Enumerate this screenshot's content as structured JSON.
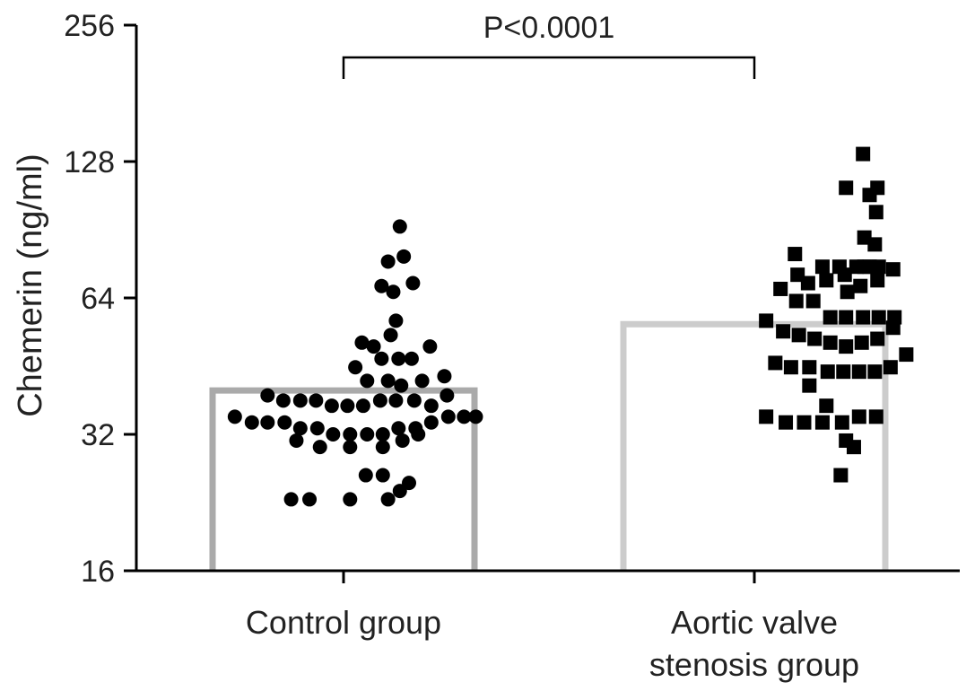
{
  "chart_data": {
    "type": "scatter",
    "subtype": "dot-plot-with-bars",
    "ylabel": "Chemerin (ng/ml)",
    "yscale": "log2",
    "ylim": [
      16,
      256
    ],
    "yticks": [
      "16",
      "32",
      "64",
      "128",
      "256"
    ],
    "categories": [
      {
        "label_lines": [
          "Control group"
        ]
      },
      {
        "label_lines": [
          "Aortic valve",
          "stenosis group"
        ]
      }
    ],
    "bar_colors": [
      "#aaaaaa",
      "#cccccc"
    ],
    "point_color": "#000000",
    "bar_values": [
      40,
      56
    ],
    "annotation": {
      "text": "P<0.0001",
      "between": [
        0,
        1
      ]
    },
    "series": [
      {
        "marker": "circle",
        "points": [
          [
            0.43,
            92
          ],
          [
            0.34,
            77
          ],
          [
            0.46,
            79
          ],
          [
            0.29,
            68
          ],
          [
            0.38,
            66
          ],
          [
            0.53,
            69
          ],
          [
            0.4,
            57
          ],
          [
            0.14,
            51
          ],
          [
            0.23,
            50
          ],
          [
            0.36,
            53
          ],
          [
            0.66,
            50
          ],
          [
            0.09,
            45
          ],
          [
            0.29,
            47
          ],
          [
            0.42,
            47
          ],
          [
            0.52,
            47
          ],
          [
            0.18,
            42
          ],
          [
            0.34,
            42
          ],
          [
            0.44,
            41
          ],
          [
            0.6,
            42
          ],
          [
            0.77,
            43
          ],
          [
            -0.58,
            39
          ],
          [
            -0.46,
            38
          ],
          [
            -0.33,
            38
          ],
          [
            -0.21,
            38
          ],
          [
            -0.09,
            37
          ],
          [
            0.03,
            37
          ],
          [
            0.15,
            37
          ],
          [
            0.28,
            38
          ],
          [
            0.4,
            38
          ],
          [
            0.54,
            38
          ],
          [
            0.67,
            37
          ],
          [
            0.79,
            39
          ],
          [
            -0.83,
            35
          ],
          [
            -0.7,
            34
          ],
          [
            -0.58,
            34
          ],
          [
            -0.45,
            34
          ],
          [
            -0.33,
            33
          ],
          [
            -0.2,
            33
          ],
          [
            -0.08,
            32
          ],
          [
            0.05,
            32
          ],
          [
            0.18,
            32
          ],
          [
            0.3,
            32
          ],
          [
            0.42,
            33
          ],
          [
            0.55,
            33
          ],
          [
            0.67,
            34
          ],
          [
            0.8,
            35
          ],
          [
            0.92,
            35
          ],
          [
            1.01,
            35
          ],
          [
            -0.36,
            31
          ],
          [
            -0.18,
            30
          ],
          [
            0.05,
            30
          ],
          [
            0.3,
            30
          ],
          [
            0.45,
            31
          ],
          [
            0.57,
            32
          ],
          [
            0.17,
            26
          ],
          [
            0.3,
            26
          ],
          [
            0.5,
            25
          ],
          [
            0.34,
            23
          ],
          [
            0.43,
            24
          ],
          [
            0.05,
            23
          ],
          [
            -0.26,
            23
          ],
          [
            -0.4,
            23
          ]
        ]
      },
      {
        "marker": "square",
        "points": [
          [
            0.83,
            133
          ],
          [
            0.7,
            112
          ],
          [
            0.88,
            108
          ],
          [
            0.94,
            112
          ],
          [
            0.93,
            99
          ],
          [
            0.92,
            84
          ],
          [
            0.84,
            87
          ],
          [
            0.31,
            80
          ],
          [
            0.84,
            75
          ],
          [
            0.52,
            75
          ],
          [
            0.65,
            75
          ],
          [
            0.78,
            75
          ],
          [
            0.88,
            75
          ],
          [
            0.95,
            75
          ],
          [
            0.33,
            72
          ],
          [
            0.41,
            69
          ],
          [
            0.55,
            70
          ],
          [
            0.69,
            72
          ],
          [
            0.71,
            66
          ],
          [
            0.81,
            68
          ],
          [
            0.94,
            70
          ],
          [
            1.06,
            74
          ],
          [
            0.2,
            67
          ],
          [
            0.32,
            63
          ],
          [
            0.45,
            63
          ],
          [
            0.58,
            58
          ],
          [
            0.7,
            58
          ],
          [
            0.83,
            58
          ],
          [
            0.95,
            58
          ],
          [
            1.07,
            58
          ],
          [
            0.09,
            57
          ],
          [
            0.22,
            54
          ],
          [
            0.34,
            53
          ],
          [
            0.46,
            52
          ],
          [
            0.58,
            51
          ],
          [
            0.7,
            50
          ],
          [
            0.82,
            51
          ],
          [
            0.94,
            52
          ],
          [
            1.06,
            55
          ],
          [
            0.16,
            46
          ],
          [
            0.28,
            45
          ],
          [
            0.42,
            45
          ],
          [
            0.56,
            44
          ],
          [
            0.68,
            44
          ],
          [
            0.8,
            44
          ],
          [
            0.92,
            44
          ],
          [
            1.04,
            45
          ],
          [
            1.16,
            48
          ],
          [
            0.09,
            35
          ],
          [
            0.24,
            34
          ],
          [
            0.38,
            34
          ],
          [
            0.52,
            34
          ],
          [
            0.67,
            34
          ],
          [
            0.8,
            35
          ],
          [
            0.93,
            35
          ],
          [
            0.42,
            41
          ],
          [
            0.55,
            37
          ],
          [
            0.7,
            31
          ],
          [
            0.76,
            30
          ],
          [
            0.66,
            26
          ]
        ]
      }
    ]
  }
}
